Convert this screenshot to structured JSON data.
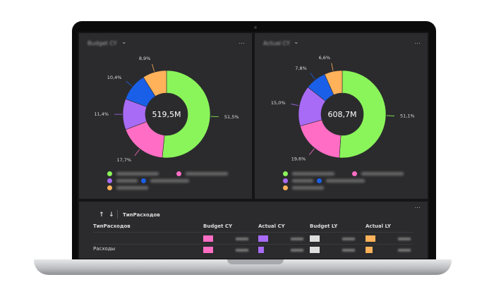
{
  "colors": {
    "green": "#8af55a",
    "pink": "#ff6ec4",
    "purple": "#a86bf5",
    "blue": "#1a5fe8",
    "orange": "#ffb25a",
    "gray": "#dddddd"
  },
  "panels": [
    {
      "title": "Budget CY",
      "center_label": "519,5M",
      "menu": "...",
      "chart_data": {
        "type": "donut",
        "values": [
          51.5,
          17.7,
          11.4,
          10.4,
          8.9
        ],
        "labels": [
          "51,5%",
          "17,7%",
          "11,4%",
          "10,4%",
          "8,9%"
        ],
        "colors": [
          "#8af55a",
          "#ff6ec4",
          "#a86bf5",
          "#1a5fe8",
          "#ffb25a"
        ]
      }
    },
    {
      "title": "Actual CY",
      "center_label": "608,7M",
      "menu": "...",
      "chart_data": {
        "type": "donut",
        "values": [
          51.1,
          19.6,
          15.0,
          7.8,
          6.6
        ],
        "labels": [
          "51,1%",
          "19,6%",
          "15,0%",
          "7,8%",
          "6,6%"
        ],
        "colors": [
          "#8af55a",
          "#ff6ec4",
          "#a86bf5",
          "#1a5fe8",
          "#ffb25a"
        ]
      }
    }
  ],
  "table": {
    "menu": "...",
    "sort_up": "↑",
    "sort_down": "↓",
    "group_label": "ТипРасходов",
    "columns": [
      "ТипРасходов",
      "Budget CY",
      "Actual CY",
      "Budget LY",
      "Actual LY"
    ],
    "rows": [
      {
        "label": ""
      },
      {
        "label": "Расходы"
      }
    ]
  }
}
